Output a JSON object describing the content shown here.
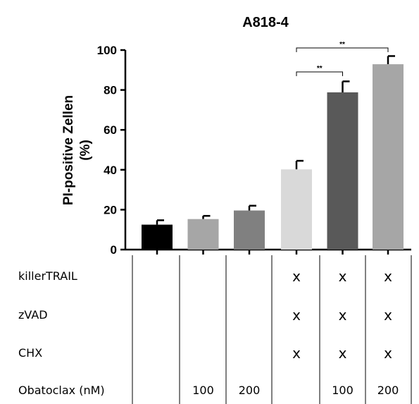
{
  "chart_data": {
    "type": "bar",
    "title": "A818-4",
    "ylabel_line1": "PI-positive Zellen",
    "ylabel_line2": "(%)",
    "ylim": [
      0,
      100
    ],
    "yticks": [
      "0",
      "20",
      "40",
      "60",
      "80",
      "100"
    ],
    "values": [
      12.5,
      15.3,
      19.6,
      40.2,
      78.8,
      92.9
    ],
    "errors": [
      2.2,
      1.6,
      2.4,
      4.3,
      5.5,
      4.1
    ],
    "colors": [
      "#000000",
      "#a6a6a6",
      "#808080",
      "#d9d9d9",
      "#595959",
      "#a6a6a6"
    ],
    "significance": [
      {
        "from": 3,
        "to": 4,
        "label": "**"
      },
      {
        "from": 3,
        "to": 5,
        "label": "**"
      }
    ]
  },
  "treatment_table": {
    "rows": [
      {
        "label": "killerTRAIL",
        "cells": [
          "",
          "",
          "",
          "X",
          "X",
          "X"
        ]
      },
      {
        "label": "zVAD",
        "cells": [
          "",
          "",
          "",
          "X",
          "X",
          "X"
        ]
      },
      {
        "label": "CHX",
        "cells": [
          "",
          "",
          "",
          "X",
          "X",
          "X"
        ]
      },
      {
        "label": "Obatoclax (nM)",
        "cells": [
          "",
          "100",
          "200",
          "",
          "100",
          "200"
        ]
      }
    ]
  }
}
